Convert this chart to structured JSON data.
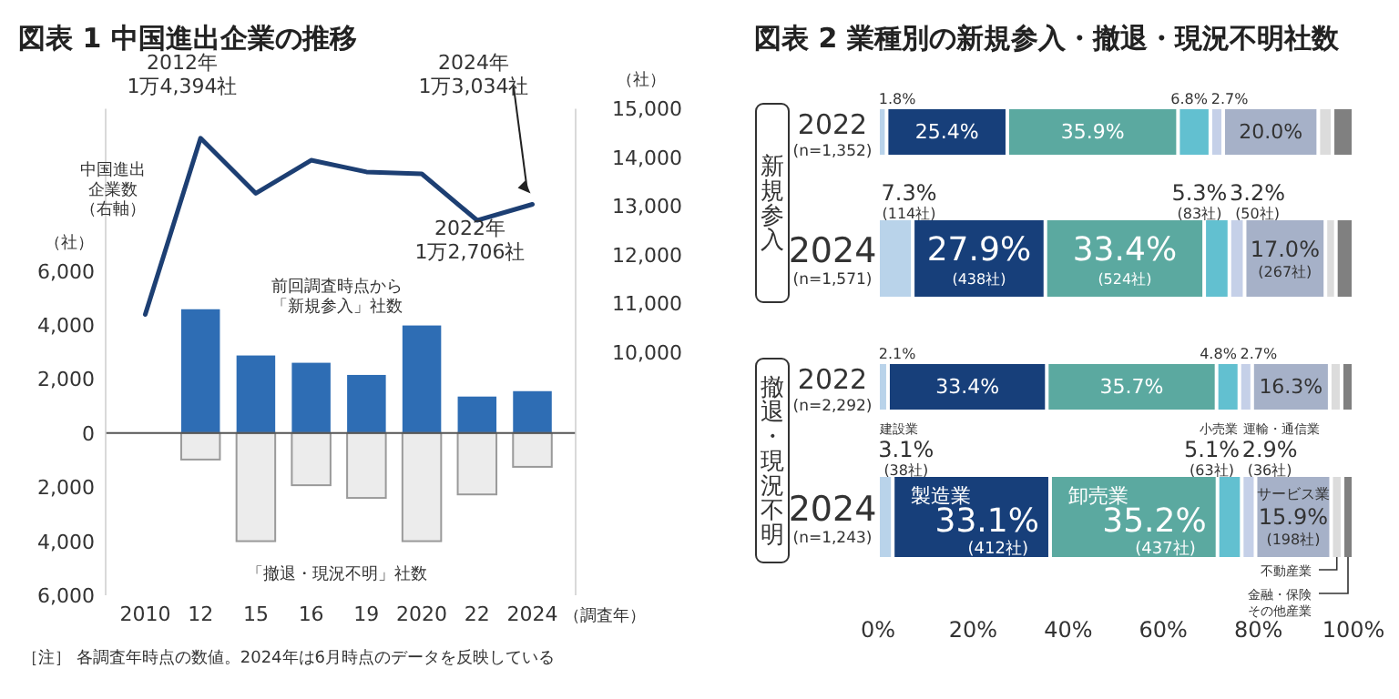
{
  "chart_data": [
    {
      "type": "bar",
      "title": "図表 1 中国進出企業の推移",
      "categories": [
        "2010",
        "12",
        "15",
        "16",
        "19",
        "2020",
        "22",
        "2024"
      ],
      "xlabel": "（調査年）",
      "ylabel": "（社）",
      "y2label": "（社）",
      "stacked": true,
      "ylim": [
        -6000,
        12000
      ],
      "yticks": [
        {
          "value": -6000,
          "label": "6,000"
        },
        {
          "value": -4000,
          "label": "4,000"
        },
        {
          "value": -2000,
          "label": "2,000"
        },
        0,
        {
          "value": 2000,
          "label": "2,000"
        },
        {
          "value": 4000,
          "label": "4,000"
        },
        {
          "value": 6000,
          "label": "6,000"
        }
      ],
      "y2lim": [
        5000,
        15000
      ],
      "y2ticks": [
        {
          "value": 10000,
          "label": "10,000"
        },
        {
          "value": 11000,
          "label": "11,000"
        },
        {
          "value": 12000,
          "label": "12,000"
        },
        {
          "value": 13000,
          "label": "13,000"
        },
        {
          "value": 14000,
          "label": "14,000"
        },
        {
          "value": 15000,
          "label": "15,000"
        }
      ],
      "series": [
        {
          "name": "前回調査時点から「新規参入」社数",
          "color": "#2e6db4",
          "values": [
            null,
            4580,
            2870,
            2600,
            2150,
            3980,
            1350,
            1550
          ]
        },
        {
          "name": "「撤退・現況不明」社数",
          "color": "#ececec",
          "values": [
            null,
            -980,
            -4000,
            -1930,
            -2400,
            -4000,
            -2270,
            -1250
          ]
        },
        {
          "name": "中国進出企業数（右軸）",
          "type": "line",
          "axis": "y2",
          "color": "#1d3f73",
          "values": [
            10770,
            14394,
            13260,
            13940,
            13700,
            13660,
            12706,
            13034
          ]
        }
      ],
      "annotations": [
        "2012年\n1万4,394社",
        "2024年\n1万3,034社",
        "2022年\n1万2,706社",
        "［注］ 各調査年時点の数値。2024年は6月時点のデータを反映している"
      ]
    },
    {
      "type": "bar",
      "orientation": "horizontal",
      "stacked": true,
      "title": "図表 2 業種別の新規参入・撤退・現況不明社数",
      "categories": [
        "2022\n(n=1,352)",
        "2024\n(n=1,571)",
        "2022\n(n=2,292)",
        "2024\n(n=1,243)"
      ],
      "xlim": [
        0,
        100
      ],
      "xticks": [
        {
          "value": 0,
          "label": "0%"
        },
        {
          "value": 20,
          "label": "20%"
        },
        {
          "value": 40,
          "label": "40%"
        },
        {
          "value": 60,
          "label": "60%"
        },
        {
          "value": 80,
          "label": "80%"
        },
        {
          "value": 100,
          "label": "100%"
        }
      ],
      "annotations": [
        "新規参入",
        "撤退・現況不明"
      ],
      "series": [
        {
          "name": "建設業",
          "color": "#b9d3ea",
          "values": [
            1.8,
            7.3,
            2.1,
            3.1
          ],
          "value_labels": [
            "1.8%",
            "7.3%\n(114社)",
            "2.1%",
            "3.1%\n(38社)"
          ]
        },
        {
          "name": "製造業",
          "color": "#173f7a",
          "values": [
            25.4,
            27.9,
            33.4,
            33.1
          ],
          "value_labels": [
            "25.4%",
            "27.9%\n(438社)",
            "33.4%",
            "33.1%\n(412社)"
          ]
        },
        {
          "name": "卸売業",
          "color": "#5ba9a0",
          "values": [
            35.9,
            33.4,
            35.7,
            35.2
          ],
          "value_labels": [
            "35.9%",
            "33.4%\n(524社)",
            "35.7%",
            "35.2%\n(437社)"
          ]
        },
        {
          "name": "小売業",
          "color": "#62c0d0",
          "values": [
            6.8,
            5.3,
            4.8,
            5.1
          ],
          "value_labels": [
            "6.8%",
            "5.3%\n(83社)",
            "4.8%",
            "5.1%\n(63社)"
          ]
        },
        {
          "name": "運輸・通信業",
          "color": "#c5d0e8",
          "values": [
            2.7,
            3.2,
            2.7,
            2.9
          ],
          "value_labels": [
            "2.7%",
            "3.2%\n(50社)",
            "2.7%",
            "2.9%\n(36社)"
          ]
        },
        {
          "name": "サービス業",
          "color": "#a6b1c8",
          "values": [
            20.0,
            17.0,
            16.3,
            15.9
          ],
          "value_labels": [
            "20.0%",
            "17.0%\n(267社)",
            "16.3%",
            "15.9%\n(198社)"
          ]
        },
        {
          "name": "不動産業",
          "color": "#dcdcdc",
          "values": [
            3.0,
            2.2,
            2.5,
            2.4
          ],
          "value_labels": [
            null,
            null,
            null,
            null
          ]
        },
        {
          "name": "金融・保険その他産業",
          "color": "#808080",
          "values": [
            4.4,
            3.7,
            2.5,
            2.3
          ],
          "value_labels": [
            null,
            null,
            null,
            null
          ]
        }
      ]
    }
  ]
}
